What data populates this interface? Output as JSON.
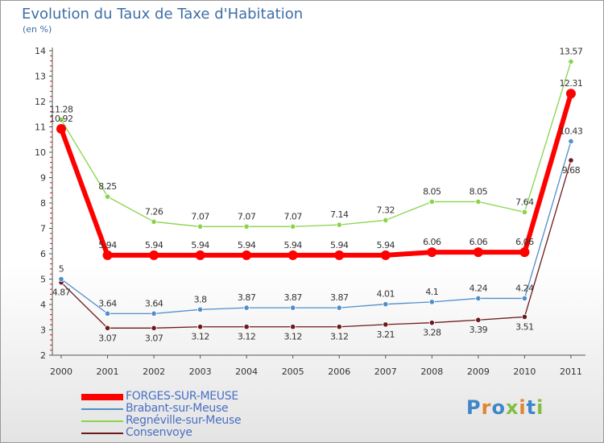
{
  "header": {
    "title": "Evolution du Taux de Taxe d'Habitation",
    "unit": "(en %)"
  },
  "logo": {
    "text": "Proxiti",
    "letter_colors": [
      "#3f86c8",
      "#e0842c",
      "#3f86c8",
      "#7fbf3f",
      "#e0842c",
      "#3f86c8",
      "#7fbf3f"
    ]
  },
  "chart_data": {
    "type": "line",
    "title": "Evolution du Taux de Taxe d'Habitation",
    "ylabel": "(en %)",
    "xlabel": "",
    "x": [
      "2000",
      "2001",
      "2002",
      "2003",
      "2004",
      "2005",
      "2006",
      "2007",
      "2008",
      "2009",
      "2010",
      "2011"
    ],
    "ylim": [
      2,
      14
    ],
    "yticks": [
      "2",
      "3",
      "4",
      "5",
      "6",
      "7",
      "8",
      "9",
      "10",
      "11",
      "12",
      "13",
      "14"
    ],
    "grid": false,
    "legend_position": "bottom-left",
    "series": [
      {
        "name": "FORGES-SUR-MEUSE",
        "color": "#ff0000",
        "values": [
          10.92,
          5.94,
          5.94,
          5.94,
          5.94,
          5.94,
          5.94,
          5.94,
          6.06,
          6.06,
          6.06,
          12.31
        ],
        "labels": [
          "10.92",
          "5.94",
          "5.94",
          "5.94",
          "5.94",
          "5.94",
          "5.94",
          "5.94",
          "6.06",
          "6.06",
          "6.06",
          "12.31"
        ]
      },
      {
        "name": "Brabant-sur-Meuse",
        "color": "#4f8fc9",
        "values": [
          5,
          3.64,
          3.64,
          3.8,
          3.87,
          3.87,
          3.87,
          4.01,
          4.1,
          4.24,
          4.24,
          10.43
        ],
        "labels": [
          "5",
          "3.64",
          "3.64",
          "3.8",
          "3.87",
          "3.87",
          "3.87",
          "4.01",
          "4.1",
          "4.24",
          "4.24",
          "10.43"
        ]
      },
      {
        "name": "Regnéville-sur-Meuse",
        "color": "#88d44a",
        "values": [
          11.28,
          8.25,
          7.26,
          7.07,
          7.07,
          7.07,
          7.14,
          7.32,
          8.05,
          8.05,
          7.64,
          13.57
        ],
        "labels": [
          "11.28",
          "8.25",
          "7.26",
          "7.07",
          "7.07",
          "7.07",
          "7.14",
          "7.32",
          "8.05",
          "8.05",
          "7.64",
          "13.57"
        ]
      },
      {
        "name": "Consenvoye",
        "color": "#6b1a1a",
        "values": [
          4.87,
          3.07,
          3.07,
          3.12,
          3.12,
          3.12,
          3.12,
          3.21,
          3.28,
          3.39,
          3.51,
          9.68
        ],
        "labels": [
          "4.87",
          "3.07",
          "3.07",
          "3.12",
          "3.12",
          "3.12",
          "3.12",
          "3.21",
          "3.28",
          "3.39",
          "3.51",
          "9.68"
        ]
      }
    ]
  }
}
